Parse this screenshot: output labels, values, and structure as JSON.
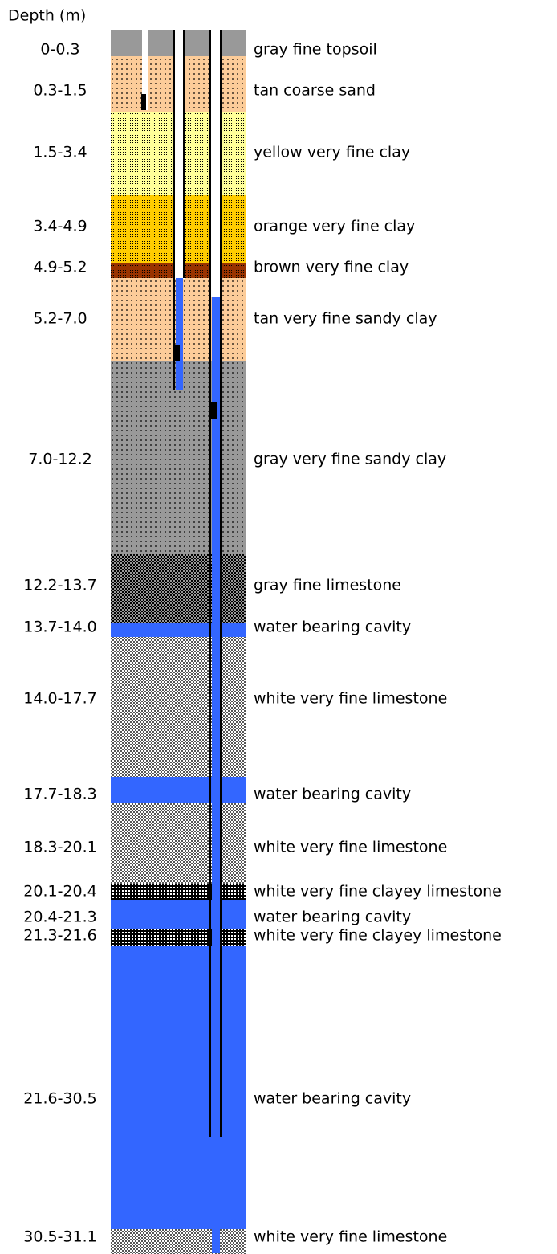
{
  "header": {
    "title": "Depth (m)"
  },
  "layers": [
    {
      "depth": "0-0.3",
      "description": "gray fine topsoil"
    },
    {
      "depth": "0.3-1.5",
      "description": "tan coarse sand"
    },
    {
      "depth": "1.5-3.4",
      "description": "yellow very fine clay"
    },
    {
      "depth": "3.4-4.9",
      "description": "orange very fine clay"
    },
    {
      "depth": "4.9-5.2",
      "description": "brown very fine clay"
    },
    {
      "depth": "5.2-7.0",
      "description": "tan very fine sandy clay"
    },
    {
      "depth": "7.0-12.2",
      "description": "gray very fine sandy clay"
    },
    {
      "depth": "12.2-13.7",
      "description": "gray fine limestone"
    },
    {
      "depth": "13.7-14.0",
      "description": "water bearing cavity"
    },
    {
      "depth": "14.0-17.7",
      "description": "white very fine limestone"
    },
    {
      "depth": "17.7-18.3",
      "description": "water bearing cavity"
    },
    {
      "depth": "18.3-20.1",
      "description": "white very fine limestone"
    },
    {
      "depth": "20.1-20.4",
      "description": "white very fine clayey limestone"
    },
    {
      "depth": "20.4-21.3",
      "description": "water bearing cavity"
    },
    {
      "depth": "21.3-21.6",
      "description": "white very fine clayey limestone"
    },
    {
      "depth": "21.6-30.5",
      "description": "water bearing cavity"
    },
    {
      "depth": "30.5-31.1",
      "description": "white very fine limestone"
    }
  ]
}
